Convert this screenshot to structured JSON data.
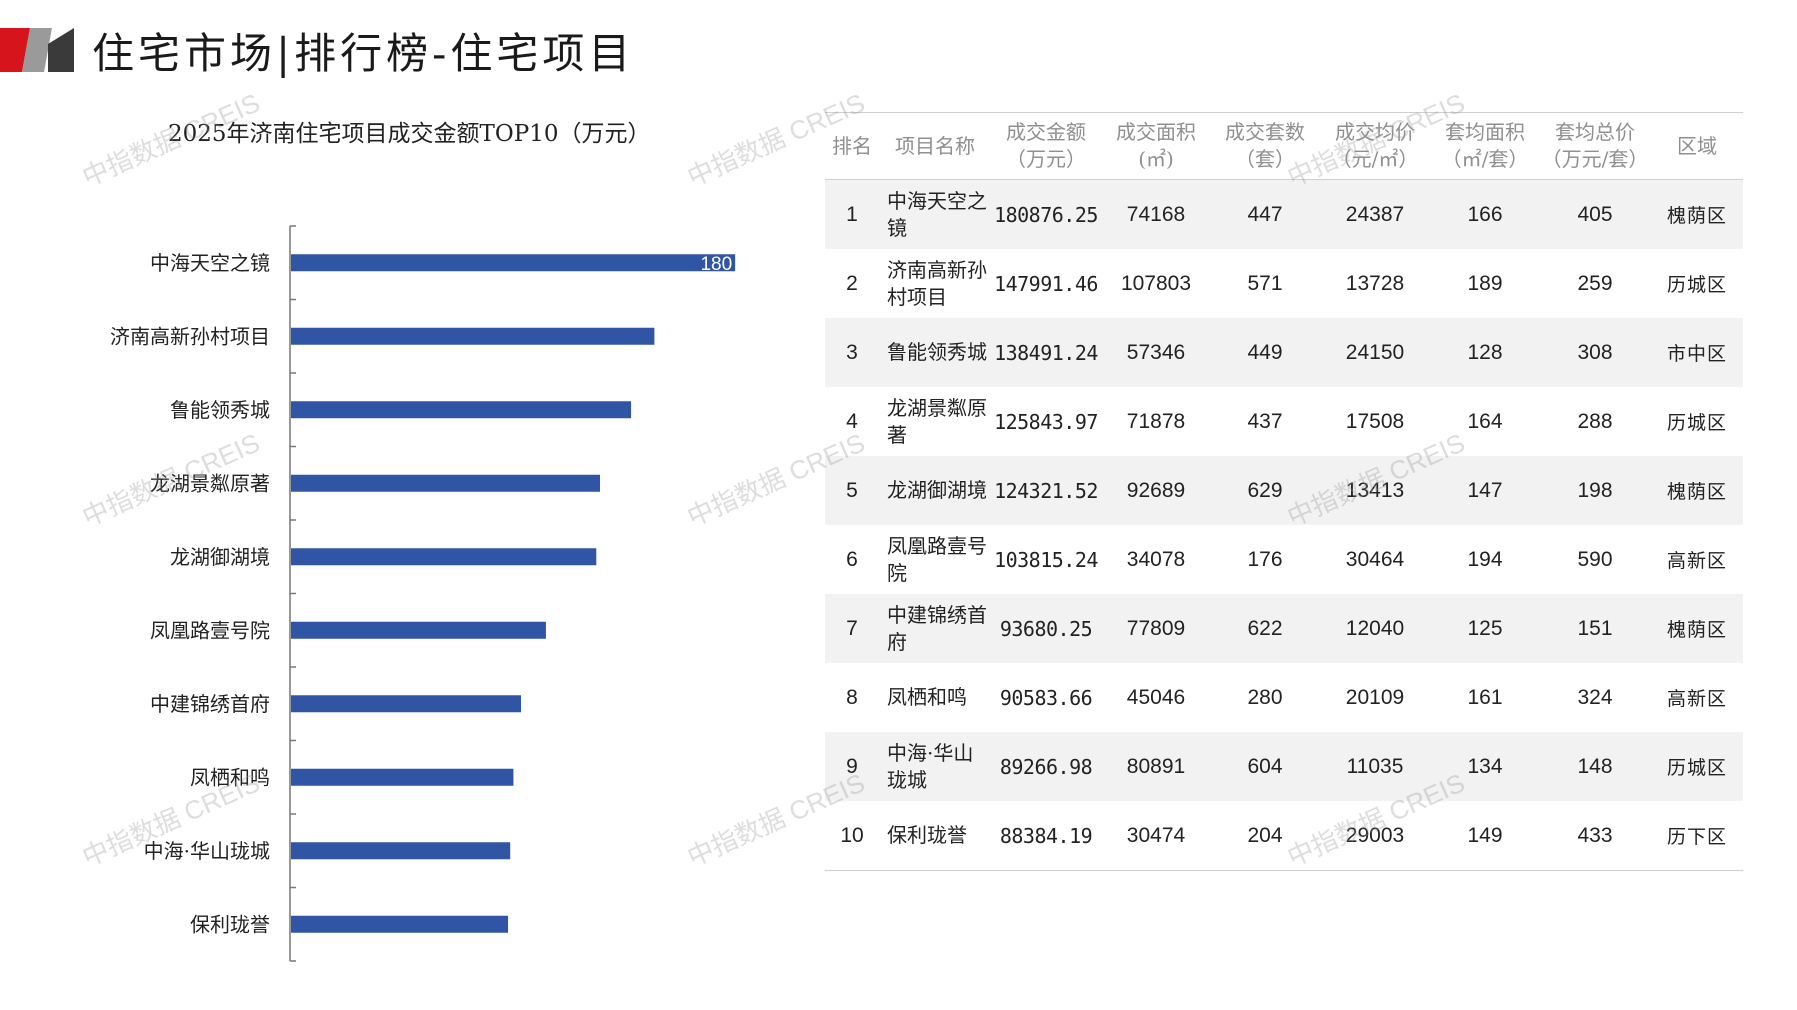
{
  "header": {
    "title": "住宅市场|排行榜-住宅项目",
    "logo_colors": [
      "#d6141c",
      "#9a9a9a",
      "#3a3a3a"
    ]
  },
  "watermark_text": "中指数据 CREIS",
  "chart_data": {
    "type": "bar",
    "orientation": "horizontal",
    "title": "2025年济南住宅项目成交金额TOP10（万元）",
    "categories": [
      "中海天空之镜",
      "济南高新孙村项目",
      "鲁能领秀城",
      "龙湖景粼原著",
      "龙湖御湖境",
      "凤凰路壹号院",
      "中建锦绣首府",
      "凤栖和鸣",
      "中海·华山珑城",
      "保利珑誉"
    ],
    "values": [
      180876.25,
      147991.46,
      138491.24,
      125843.97,
      124321.52,
      103815.24,
      93680.25,
      90583.66,
      89266.98,
      88384.19
    ],
    "data_labels": [
      "180",
      "",
      "",
      "",
      "",
      "",
      "",
      "",
      "",
      ""
    ],
    "xlim": [
      0,
      180000
    ],
    "bar_color": "#2f55a4",
    "grid": false,
    "legend": "none"
  },
  "table": {
    "headers": [
      [
        "排名"
      ],
      [
        "项目名称"
      ],
      [
        "成交金额",
        "（万元）"
      ],
      [
        "成交面积",
        "(㎡)"
      ],
      [
        "成交套数",
        "（套）"
      ],
      [
        "成交均价",
        "（元/㎡）"
      ],
      [
        "套均面积",
        "（㎡/套）"
      ],
      [
        "套均总价",
        "（万元/套）"
      ],
      [
        "区域"
      ]
    ],
    "rows": [
      {
        "rank": "1",
        "name": [
          "中海天空之",
          "镜"
        ],
        "amount": "180876.25",
        "area": "74168",
        "units": "447",
        "avg_price": "24387",
        "avg_area": "166",
        "avg_total": "405",
        "district": "槐荫区"
      },
      {
        "rank": "2",
        "name": [
          "济南高新孙",
          "村项目"
        ],
        "amount": "147991.46",
        "area": "107803",
        "units": "571",
        "avg_price": "13728",
        "avg_area": "189",
        "avg_total": "259",
        "district": "历城区"
      },
      {
        "rank": "3",
        "name": [
          "鲁能领秀城"
        ],
        "amount": "138491.24",
        "area": "57346",
        "units": "449",
        "avg_price": "24150",
        "avg_area": "128",
        "avg_total": "308",
        "district": "市中区"
      },
      {
        "rank": "4",
        "name": [
          "龙湖景粼原",
          "著"
        ],
        "amount": "125843.97",
        "area": "71878",
        "units": "437",
        "avg_price": "17508",
        "avg_area": "164",
        "avg_total": "288",
        "district": "历城区"
      },
      {
        "rank": "5",
        "name": [
          "龙湖御湖境"
        ],
        "amount": "124321.52",
        "area": "92689",
        "units": "629",
        "avg_price": "13413",
        "avg_area": "147",
        "avg_total": "198",
        "district": "槐荫区"
      },
      {
        "rank": "6",
        "name": [
          "凤凰路壹号",
          "院"
        ],
        "amount": "103815.24",
        "area": "34078",
        "units": "176",
        "avg_price": "30464",
        "avg_area": "194",
        "avg_total": "590",
        "district": "高新区"
      },
      {
        "rank": "7",
        "name": [
          "中建锦绣首",
          "府"
        ],
        "amount": "93680.25",
        "area": "77809",
        "units": "622",
        "avg_price": "12040",
        "avg_area": "125",
        "avg_total": "151",
        "district": "槐荫区"
      },
      {
        "rank": "8",
        "name": [
          "凤栖和鸣"
        ],
        "amount": "90583.66",
        "area": "45046",
        "units": "280",
        "avg_price": "20109",
        "avg_area": "161",
        "avg_total": "324",
        "district": "高新区"
      },
      {
        "rank": "9",
        "name": [
          "中海·华山",
          "珑城"
        ],
        "amount": "89266.98",
        "area": "80891",
        "units": "604",
        "avg_price": "11035",
        "avg_area": "134",
        "avg_total": "148",
        "district": "历城区"
      },
      {
        "rank": "10",
        "name": [
          "保利珑誉"
        ],
        "amount": "88384.19",
        "area": "30474",
        "units": "204",
        "avg_price": "29003",
        "avg_area": "149",
        "avg_total": "433",
        "district": "历下区"
      }
    ]
  }
}
